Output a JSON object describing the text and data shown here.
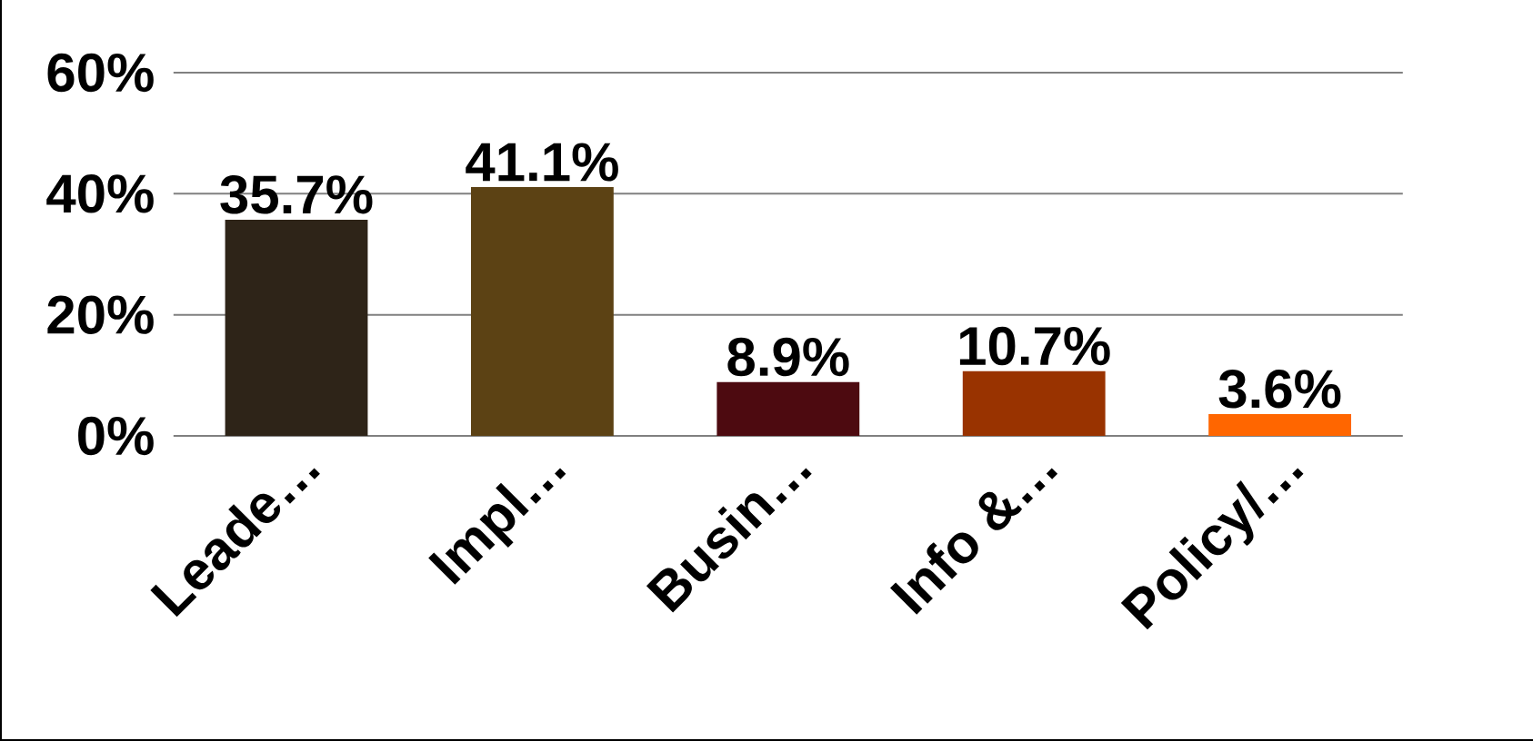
{
  "chart_data": {
    "type": "bar",
    "categories": [
      "Leade…",
      "Impl…",
      "Busin…",
      "Info &…",
      "Policy/…"
    ],
    "values": [
      35.7,
      41.1,
      8.9,
      10.7,
      3.6
    ],
    "colors": [
      "#2e2418",
      "#5c4214",
      "#4d0a10",
      "#993300",
      "#ff6600"
    ],
    "value_labels": [
      "35.7%",
      "41.1%",
      "8.9%",
      "10.7%",
      "3.6%"
    ],
    "ylim": [
      0,
      60
    ],
    "yticks": [
      {
        "value": 0,
        "label": "0%"
      },
      {
        "value": 20,
        "label": "20%"
      },
      {
        "value": 40,
        "label": "40%"
      },
      {
        "value": 60,
        "label": "60%"
      }
    ],
    "grid": "y"
  }
}
